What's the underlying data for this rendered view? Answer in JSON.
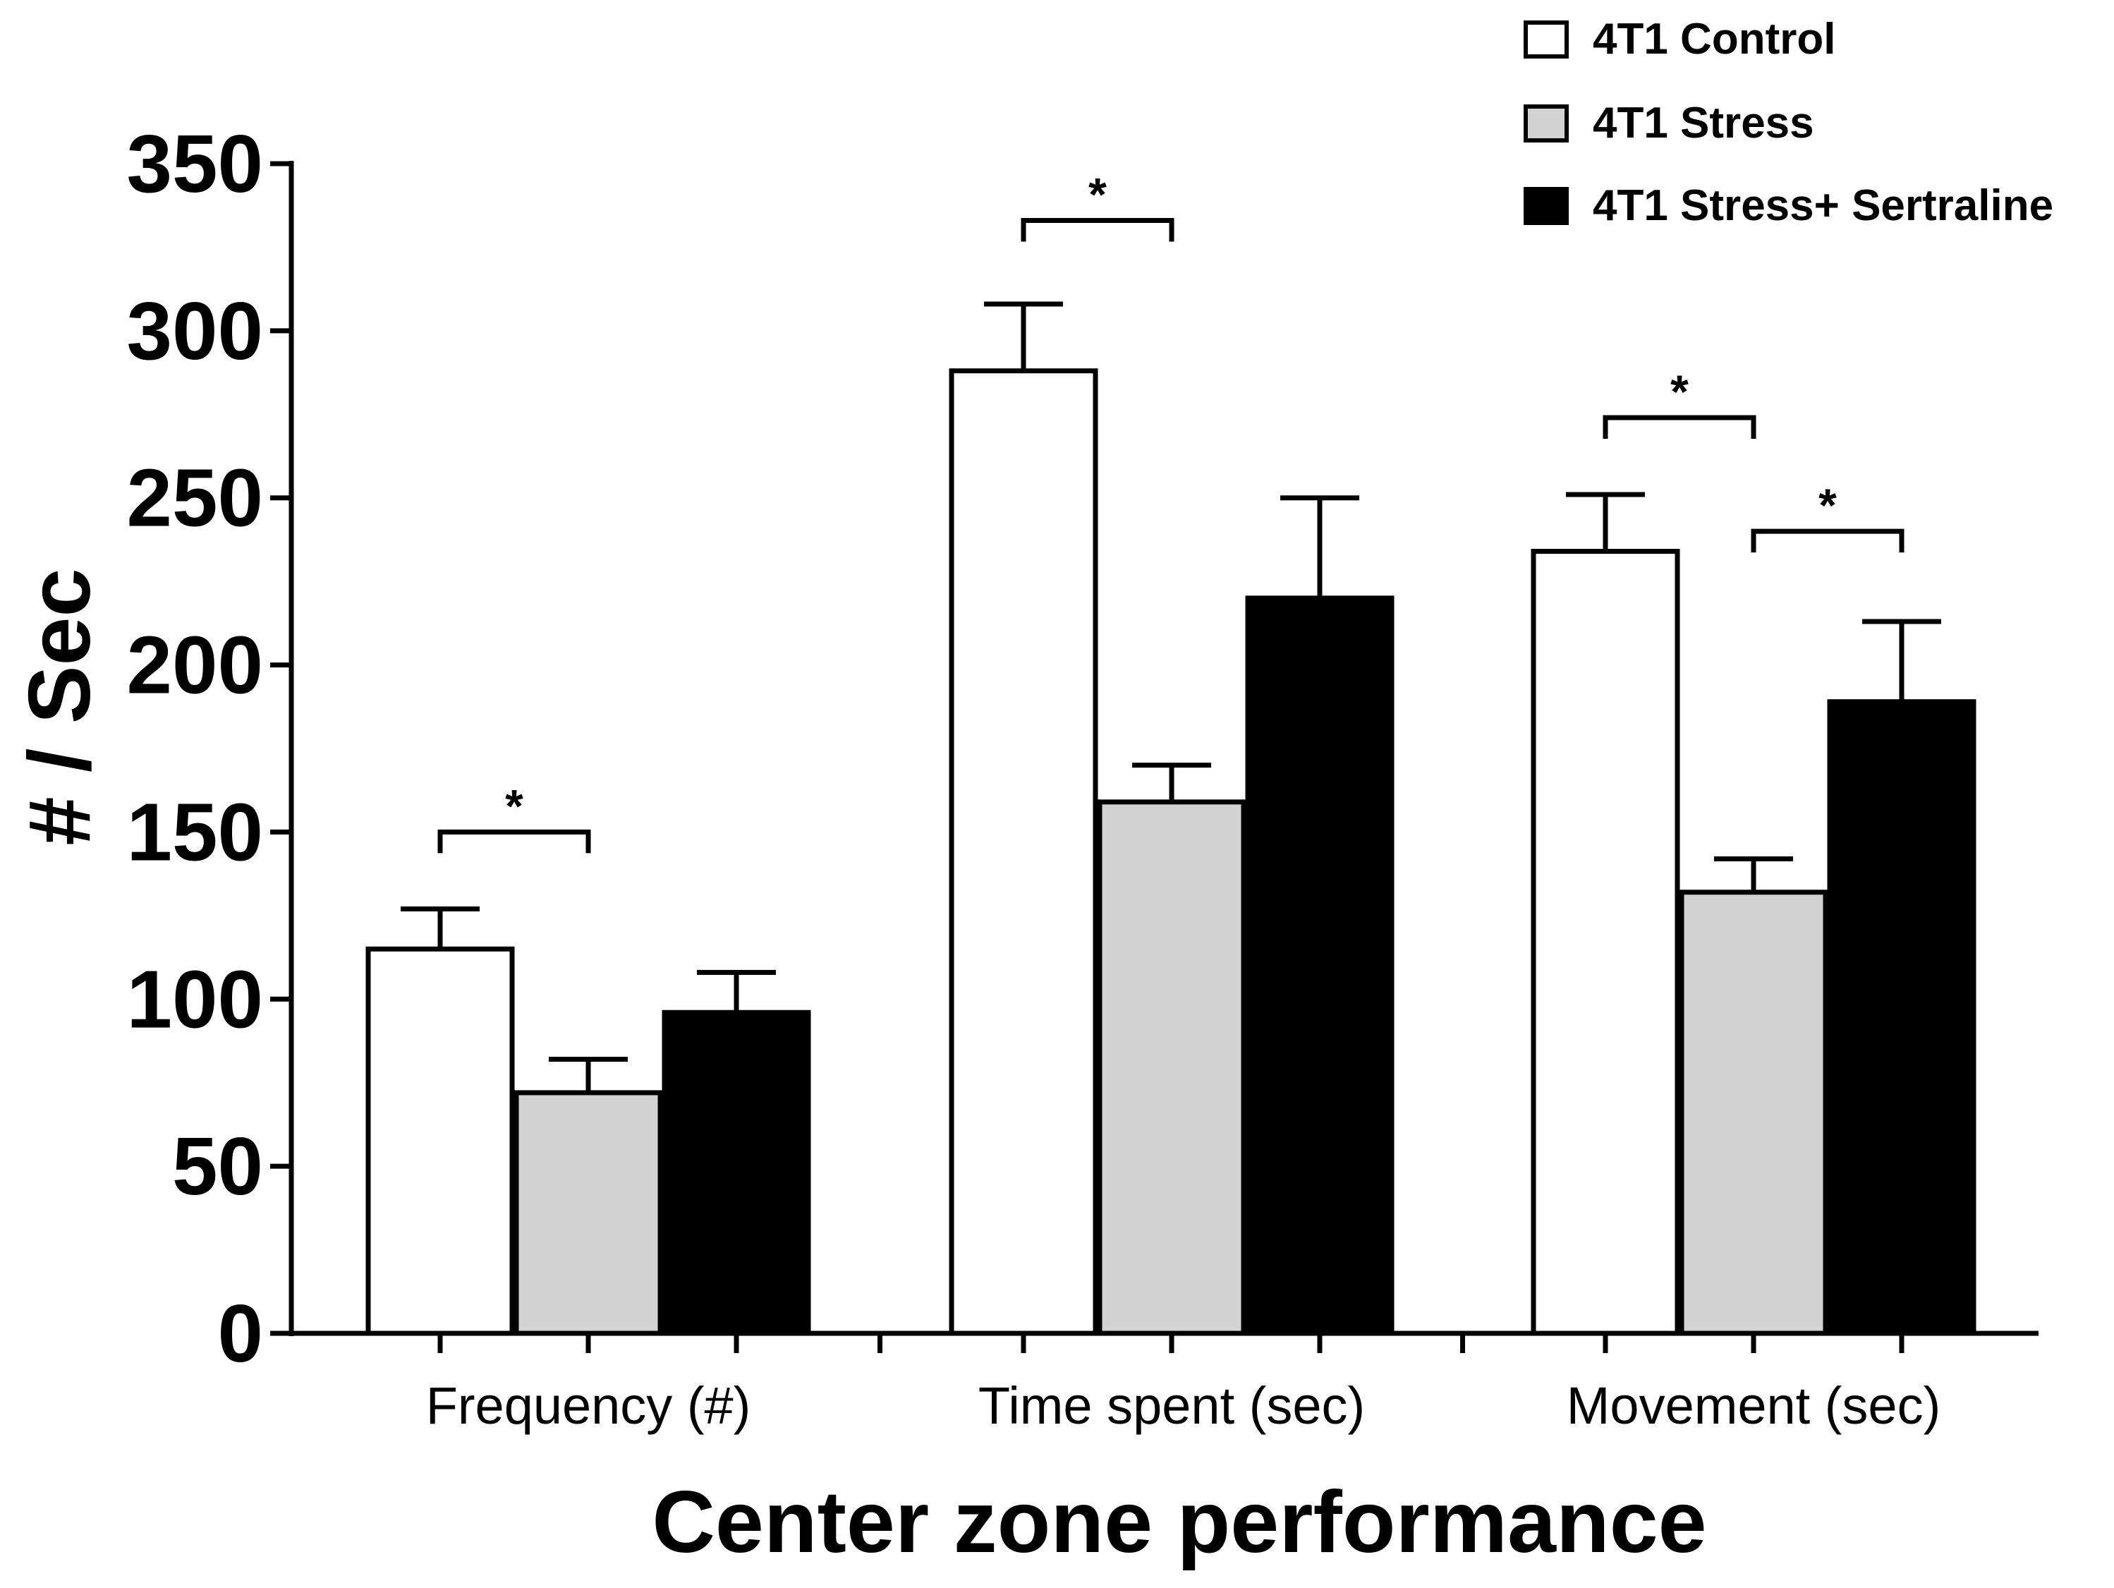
{
  "chart_data": {
    "type": "bar",
    "title": "",
    "xlabel": "Center zone performance",
    "ylabel": "# / Sec",
    "ylim": [
      0,
      350
    ],
    "yticks": [
      0,
      50,
      100,
      150,
      200,
      250,
      300,
      350
    ],
    "yticks_labels": [
      "0",
      "50",
      "100",
      "150",
      "200",
      "250",
      "300",
      "350"
    ],
    "grid": false,
    "legend_position": "top-right",
    "categories": [
      "Frequency (#)",
      "Time spent (sec)",
      "Movement (sec)"
    ],
    "series": [
      {
        "name": "4T1 Control",
        "color": "#ffffff",
        "values": [
          115,
          288,
          234
        ],
        "errors": [
          12,
          20,
          17
        ]
      },
      {
        "name": "4T1 Stress",
        "color": "#d3d3d3",
        "values": [
          72,
          159,
          132
        ],
        "errors": [
          10,
          11,
          10
        ]
      },
      {
        "name": "4T1 Stress+ Sertraline",
        "color": "#000000",
        "values": [
          96,
          220,
          189
        ],
        "errors": [
          12,
          30,
          24
        ]
      }
    ],
    "significance": [
      {
        "category": 0,
        "from": 0,
        "to": 1,
        "label": "*",
        "level": 150
      },
      {
        "category": 1,
        "from": 0,
        "to": 1,
        "label": "*",
        "level": 333
      },
      {
        "category": 2,
        "from": 0,
        "to": 1,
        "label": "*",
        "level": 274
      },
      {
        "category": 2,
        "from": 1,
        "to": 2,
        "label": "*",
        "level": 240
      }
    ]
  }
}
